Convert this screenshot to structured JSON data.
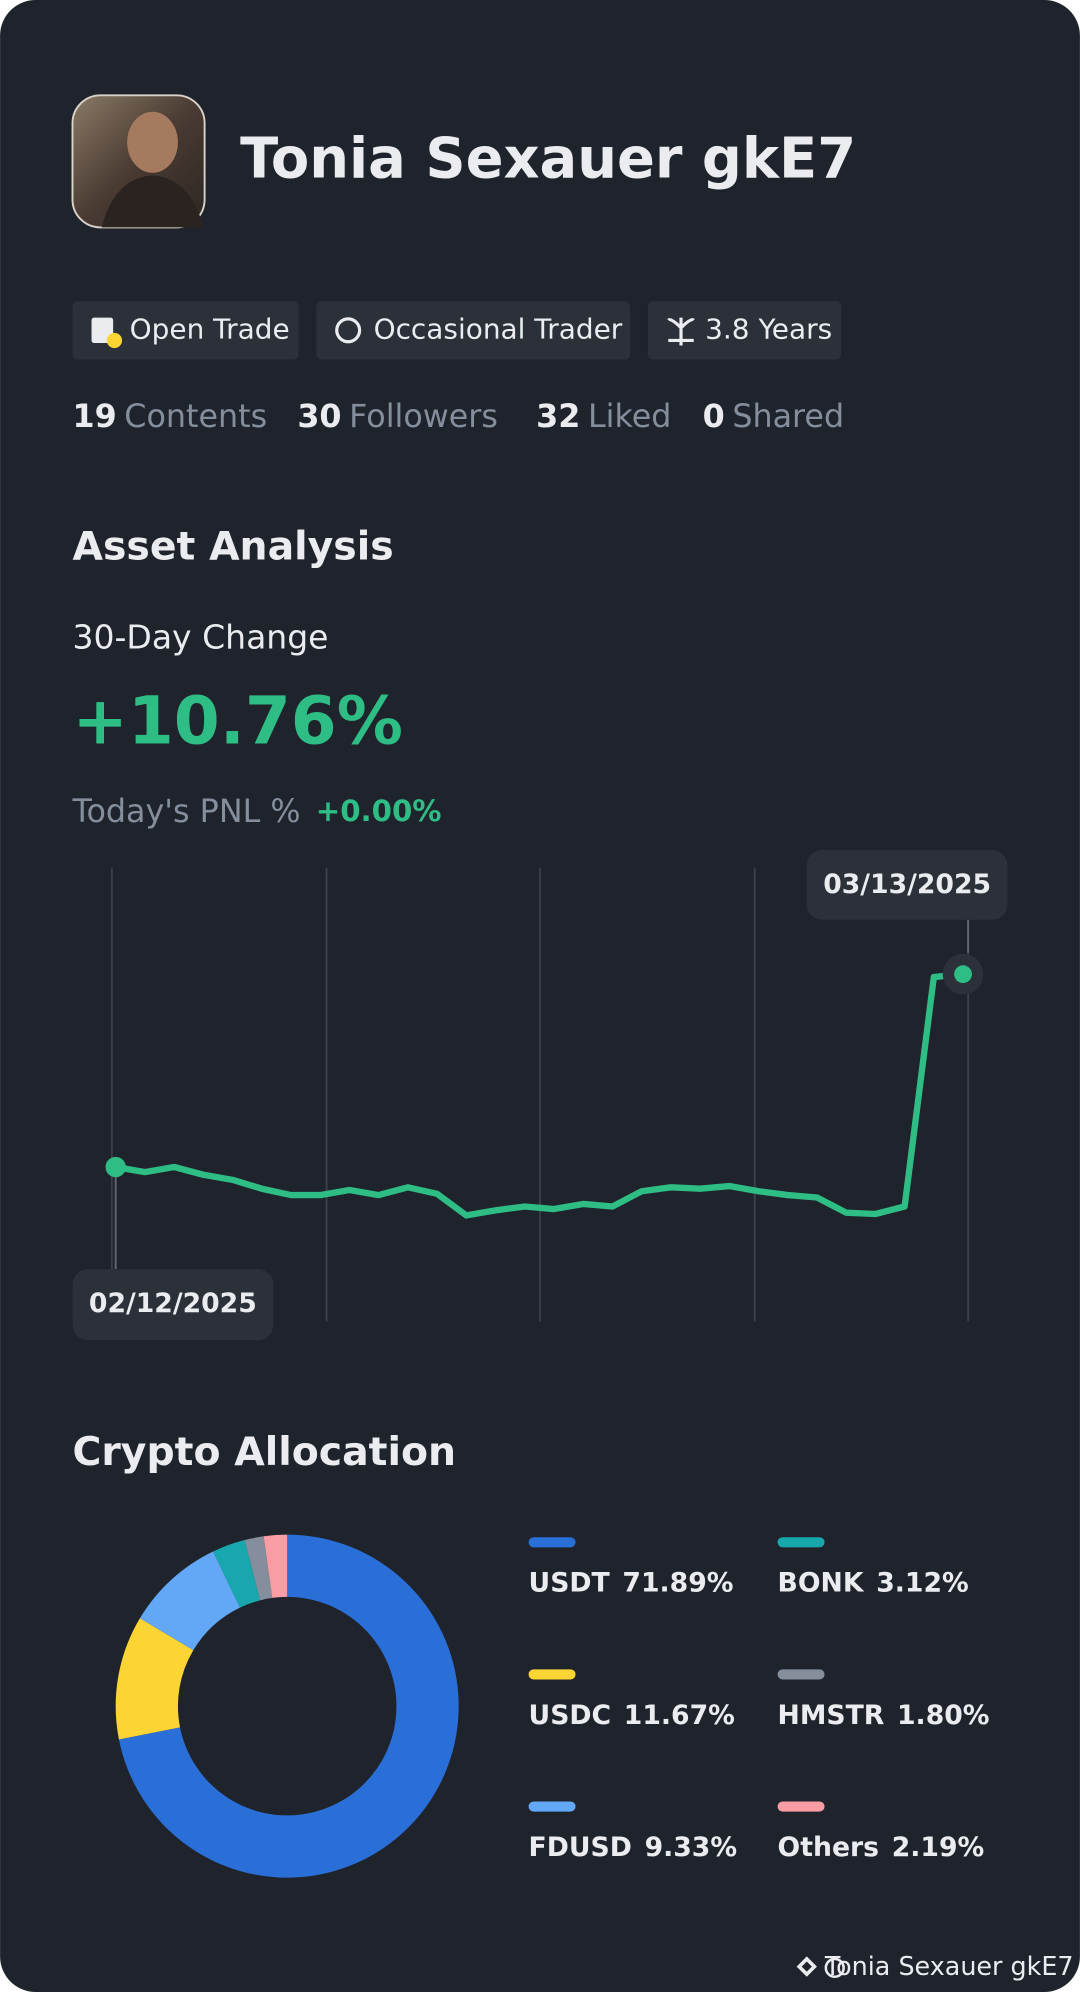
{
  "profile": {
    "name": "Tonia Sexauer gkE7",
    "tags": [
      "Open Trade",
      "Occasional Trader",
      "3.8 Years"
    ],
    "stats": [
      {
        "value": 19,
        "label": "Contents"
      },
      {
        "value": 30,
        "label": "Followers"
      },
      {
        "value": 32,
        "label": "Liked"
      },
      {
        "value": 0,
        "label": "Shared"
      }
    ]
  },
  "asset_analysis": {
    "title": "Asset Analysis",
    "change_label": "30-Day Change",
    "change_value": "+10.76%",
    "pnl_label": "Today's PNL %",
    "pnl_value": "+0.00%"
  },
  "chart_data": [
    {
      "type": "line",
      "categories": [
        "02/12/2025",
        null,
        null,
        null,
        null,
        null,
        null,
        null,
        null,
        null,
        null,
        null,
        null,
        null,
        null,
        null,
        null,
        null,
        null,
        null,
        null,
        null,
        null,
        null,
        null,
        null,
        null,
        null,
        null,
        "03/13/2025"
      ],
      "values": [
        0,
        -0.28,
        0,
        -0.43,
        -0.71,
        -1.21,
        -1.56,
        -1.56,
        -1.28,
        -1.56,
        -1.13,
        -1.49,
        -2.7,
        -2.41,
        -2.2,
        -2.34,
        -2.06,
        -2.2,
        -1.35,
        -1.13,
        -1.21,
        -1.06,
        -1.35,
        -1.56,
        -1.7,
        -2.55,
        -2.62,
        -2.2,
        10.6,
        10.76
      ],
      "color": "#2ebd85",
      "ylim": [
        -8.6,
        16.7
      ]
    },
    {
      "type": "pie",
      "title": "Crypto Allocation",
      "categories": [
        "USDT",
        "USDC",
        "FDUSD",
        "BONK",
        "HMSTR",
        "Others"
      ],
      "values": [
        71.89,
        11.67,
        9.33,
        3.12,
        1.8,
        2.19
      ],
      "value_labels": [
        "71.89%",
        "11.67%",
        "9.33%",
        "3.12%",
        "1.80%",
        "2.19%"
      ],
      "colors": [
        "#2a6fd8",
        "#fcd535",
        "#62a8f6",
        "#19a7ae",
        "#848e9c",
        "#f99ca3"
      ]
    }
  ],
  "footer": {
    "watermark": "Tonia Sexauer gkE7"
  }
}
